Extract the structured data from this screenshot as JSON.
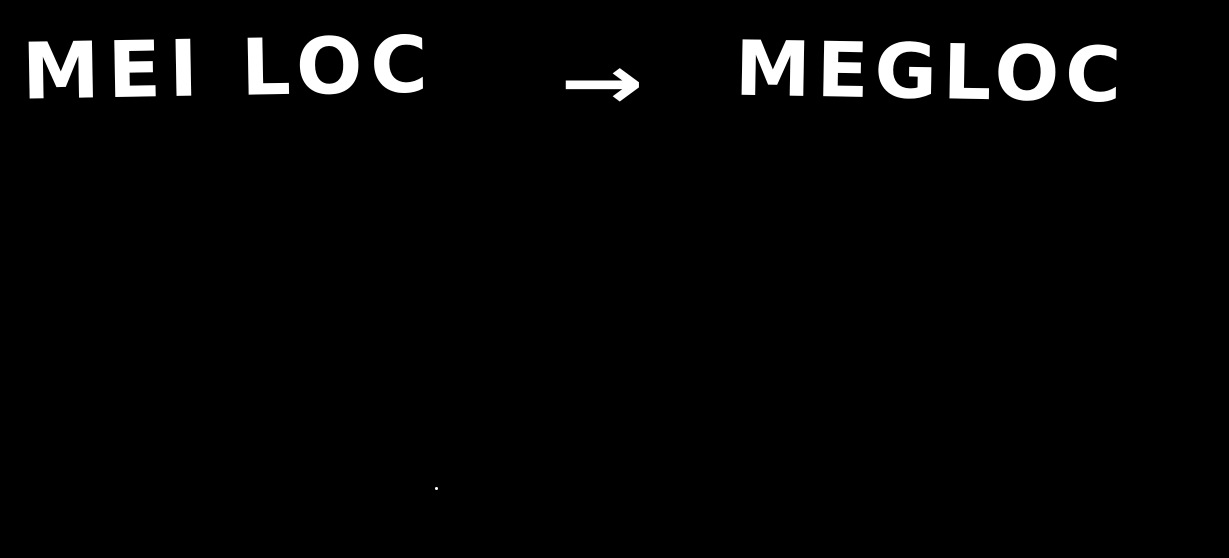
{
  "handwriting": {
    "left_word": "MEI LOC",
    "arrow": "→",
    "right_word": "MEGLOC"
  },
  "colors": {
    "background": "#000000",
    "ink": "#ffffff"
  }
}
